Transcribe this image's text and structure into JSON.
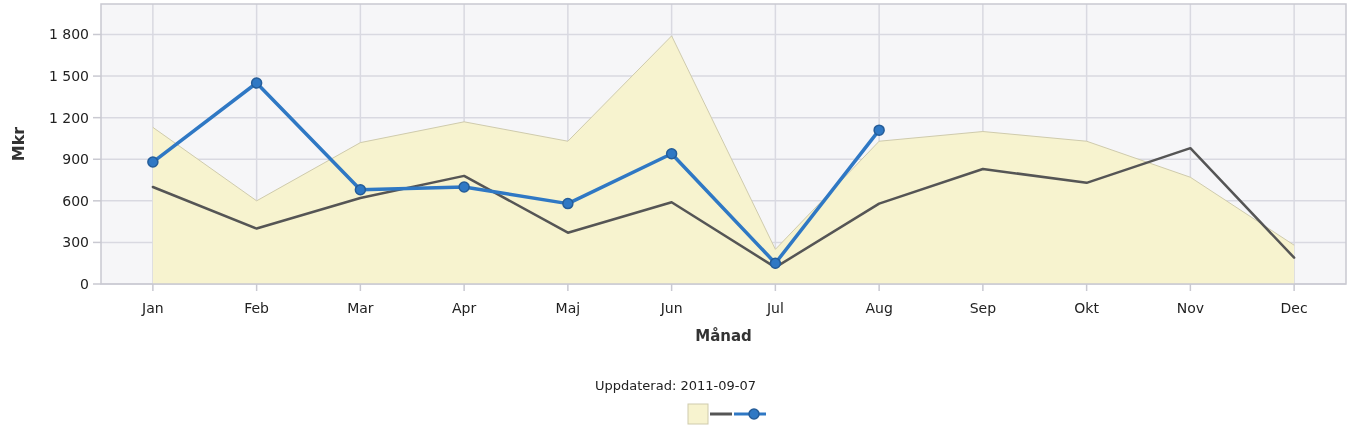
{
  "chart_data": {
    "type": "line",
    "xlabel": "Månad",
    "ylabel": "Mkr",
    "categories": [
      "Jan",
      "Feb",
      "Mar",
      "Apr",
      "Maj",
      "Jun",
      "Jul",
      "Aug",
      "Sep",
      "Okt",
      "Nov",
      "Dec"
    ],
    "ylim": [
      0,
      2020
    ],
    "yticks": [
      0,
      300,
      600,
      900,
      {
        "value": 1200,
        "label": "1 200"
      },
      {
        "value": 1500,
        "label": "1 500"
      },
      {
        "value": 1800,
        "label": "1 800"
      }
    ],
    "grid": true,
    "annotations": [
      "Uppdaterad: 2011-09-07"
    ],
    "series": [
      {
        "type": "area",
        "color": "#f7f3cf",
        "values": [
          1130,
          600,
          1020,
          1170,
          1030,
          1790,
          250,
          1030,
          1100,
          1030,
          770,
          280
        ]
      },
      {
        "color": "#555555",
        "marker": "none",
        "values": [
          700,
          400,
          620,
          780,
          370,
          590,
          120,
          580,
          830,
          730,
          980,
          190
        ]
      },
      {
        "color": "#2f78c4",
        "marker": "circle",
        "values": [
          880,
          1450,
          680,
          700,
          580,
          940,
          150,
          1110,
          null,
          null,
          null,
          null
        ]
      }
    ]
  }
}
